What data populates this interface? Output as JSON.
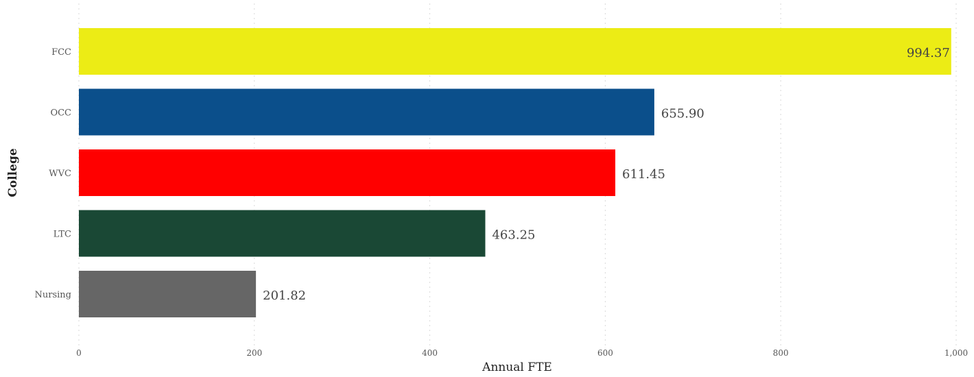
{
  "chart_data": {
    "type": "bar",
    "orientation": "horizontal",
    "categories": [
      "FCC",
      "OCC",
      "WVC",
      "LTC",
      "Nursing"
    ],
    "values": [
      994.37,
      655.9,
      611.45,
      463.25,
      201.82
    ],
    "value_labels": [
      "994.37",
      "655.90",
      "611.45",
      "463.25",
      "201.82"
    ],
    "colors": [
      "#ecec15",
      "#0b4f8b",
      "#ff0000",
      "#1a4835",
      "#666666"
    ],
    "xlabel": "Annual FTE",
    "ylabel": "College",
    "xlim": [
      0,
      1000
    ],
    "xticks": [
      0,
      200,
      400,
      600,
      800,
      1000
    ],
    "xtick_labels": [
      "0",
      "200",
      "400",
      "600",
      "800",
      "1,000"
    ],
    "grid": "vertical-dotted",
    "legend": "none"
  }
}
